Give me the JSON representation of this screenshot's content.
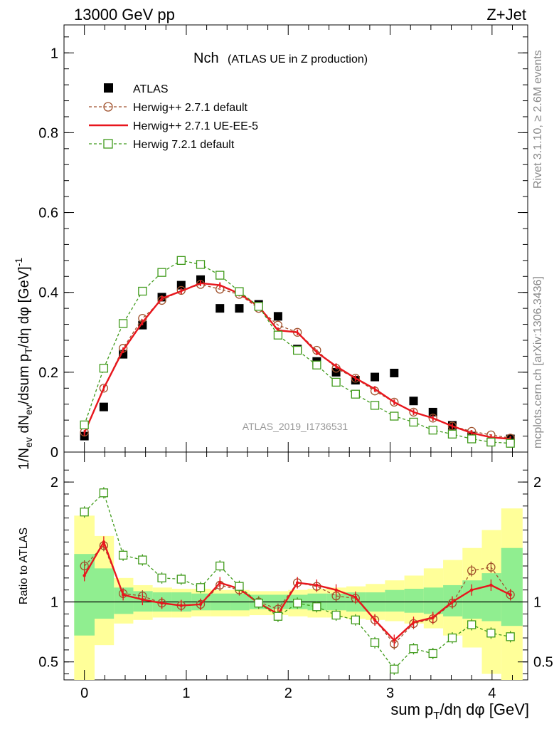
{
  "header": {
    "left_title": "13000 GeV pp",
    "right_title": "Z+Jet"
  },
  "side": {
    "rivet": "Rivet 3.1.10, ≥ 2.6M events",
    "mcplots": "mcplots.cern.ch [arXiv:1306.3436]"
  },
  "watermark": "ATLAS_2019_I1736531",
  "chart_data": [
    {
      "type": "scatter",
      "title": "Nch",
      "subtitle": "(ATLAS UE in Z production)",
      "ylabel": "1/N_ev dN_ev/dsum p_T/dη dφ [GeV]^-1",
      "xlabel": "sum p_T/dη dφ [GeV]",
      "xlim": [
        -0.2,
        4.35
      ],
      "ylim": [
        0,
        1.07
      ],
      "yticks": [
        0,
        0.2,
        0.4,
        0.6,
        0.8,
        1
      ],
      "ytick_labels": [
        "0",
        "0.2",
        "0.4",
        "0.6",
        "0.8",
        "1"
      ],
      "x": [
        0,
        0.19,
        0.38,
        0.57,
        0.76,
        0.95,
        1.14,
        1.33,
        1.52,
        1.71,
        1.9,
        2.09,
        2.28,
        2.47,
        2.66,
        2.85,
        3.04,
        3.23,
        3.42,
        3.61,
        3.8,
        3.99,
        4.18
      ],
      "series": [
        {
          "name": "ATLAS",
          "style": "data",
          "color": "#000000",
          "values": [
            0.04,
            0.113,
            0.245,
            0.318,
            0.388,
            0.418,
            0.432,
            0.36,
            0.36,
            0.37,
            0.34,
            0.258,
            0.227,
            0.2,
            0.18,
            0.188,
            0.198,
            0.128,
            0.1,
            0.067,
            0.04,
            0.025,
            0.033
          ]
        },
        {
          "name": "Herwig++ 2.7.1 default",
          "style": "circle",
          "color": "#a0522d",
          "values": [
            0.05,
            0.16,
            0.26,
            0.335,
            0.38,
            0.405,
            0.42,
            0.408,
            0.395,
            0.36,
            0.318,
            0.3,
            0.255,
            0.21,
            0.185,
            0.153,
            0.125,
            0.1,
            0.085,
            0.065,
            0.052,
            0.043,
            0.035
          ]
        },
        {
          "name": "Herwig++ 2.7.1 UE-EE-5",
          "style": "line",
          "color": "#e8161d",
          "values": [
            0.048,
            0.16,
            0.255,
            0.325,
            0.385,
            0.403,
            0.423,
            0.418,
            0.397,
            0.365,
            0.305,
            0.3,
            0.25,
            0.215,
            0.185,
            0.158,
            0.125,
            0.1,
            0.085,
            0.065,
            0.048,
            0.037,
            0.033
          ]
        },
        {
          "name": "Herwig 7.2.1 default",
          "style": "square",
          "color": "#3f9a1a",
          "values": [
            0.068,
            0.21,
            0.322,
            0.403,
            0.45,
            0.48,
            0.47,
            0.443,
            0.402,
            0.365,
            0.293,
            0.255,
            0.218,
            0.175,
            0.145,
            0.117,
            0.09,
            0.075,
            0.055,
            0.045,
            0.033,
            0.025,
            0.022
          ]
        }
      ]
    },
    {
      "type": "line",
      "ylabel": "Ratio to ATLAS",
      "xlabel": "sum p_T/dη dφ [GeV]",
      "xlim": [
        -0.2,
        4.35
      ],
      "ylim": [
        0.35,
        2.25
      ],
      "yticks": [
        0.5,
        1,
        2
      ],
      "ytick_labels": [
        "0.5",
        "1",
        "2"
      ],
      "xticks": [
        0,
        1,
        2,
        3,
        4
      ],
      "xtick_labels": [
        "0",
        "1",
        "2",
        "3",
        "4"
      ],
      "reference_line": 1,
      "band_edges": [
        -0.1,
        0.1,
        0.29,
        0.48,
        0.67,
        0.86,
        1.05,
        1.24,
        1.43,
        1.62,
        1.81,
        2.0,
        2.19,
        2.38,
        2.57,
        2.76,
        2.95,
        3.14,
        3.33,
        3.52,
        3.71,
        3.9,
        4.09,
        4.3
      ],
      "band_stat": {
        "color": "#90ee90",
        "lower": [
          0.72,
          0.86,
          0.9,
          0.92,
          0.92,
          0.92,
          0.93,
          0.93,
          0.93,
          0.94,
          0.94,
          0.94,
          0.93,
          0.93,
          0.92,
          0.92,
          0.92,
          0.91,
          0.9,
          0.88,
          0.86,
          0.84,
          0.8
        ],
        "upper": [
          1.4,
          1.28,
          1.12,
          1.09,
          1.08,
          1.08,
          1.07,
          1.07,
          1.07,
          1.06,
          1.06,
          1.06,
          1.07,
          1.07,
          1.08,
          1.08,
          1.1,
          1.11,
          1.12,
          1.14,
          1.18,
          1.24,
          1.45
        ]
      },
      "band_syst": {
        "color": "#ffff99",
        "lower": [
          0.35,
          0.64,
          0.82,
          0.85,
          0.87,
          0.87,
          0.88,
          0.88,
          0.88,
          0.89,
          0.89,
          0.88,
          0.87,
          0.87,
          0.86,
          0.85,
          0.84,
          0.82,
          0.78,
          0.72,
          0.62,
          0.4,
          0.35
        ],
        "upper": [
          1.72,
          1.55,
          1.2,
          1.14,
          1.12,
          1.11,
          1.11,
          1.1,
          1.1,
          1.09,
          1.09,
          1.1,
          1.11,
          1.12,
          1.13,
          1.15,
          1.18,
          1.22,
          1.28,
          1.35,
          1.45,
          1.6,
          1.78
        ]
      },
      "x": [
        0,
        0.19,
        0.38,
        0.57,
        0.76,
        0.95,
        1.14,
        1.33,
        1.52,
        1.71,
        1.9,
        2.09,
        2.28,
        2.47,
        2.66,
        2.85,
        3.04,
        3.23,
        3.42,
        3.61,
        3.8,
        3.99,
        4.18
      ],
      "series": [
        {
          "name": "Herwig++ 2.7.1 default",
          "style": "circle",
          "color": "#a0522d",
          "values": [
            1.3,
            1.47,
            1.07,
            1.05,
            0.99,
            0.97,
            0.98,
            1.14,
            1.1,
            1.0,
            0.94,
            1.16,
            1.13,
            1.05,
            1.03,
            0.85,
            0.65,
            0.82,
            0.86,
            0.99,
            1.26,
            1.29,
            1.06
          ]
        },
        {
          "name": "Herwig++ 2.7.1 UE-EE-5",
          "style": "line",
          "color": "#e8161d",
          "values": [
            1.22,
            1.5,
            1.06,
            1.02,
            0.99,
            0.97,
            0.98,
            1.16,
            1.11,
            0.99,
            0.9,
            1.16,
            1.14,
            1.1,
            1.04,
            0.85,
            0.68,
            0.83,
            0.87,
            1.0,
            1.1,
            1.14,
            1.06
          ]
        },
        {
          "name": "Herwig 7.2.1 default",
          "style": "square",
          "color": "#3f9a1a",
          "values": [
            1.75,
            1.91,
            1.39,
            1.35,
            1.2,
            1.19,
            1.12,
            1.3,
            1.13,
            0.99,
            0.88,
            0.99,
            0.96,
            0.89,
            0.85,
            0.66,
            0.44,
            0.61,
            0.57,
            0.7,
            0.81,
            0.74,
            0.71
          ]
        }
      ]
    }
  ]
}
